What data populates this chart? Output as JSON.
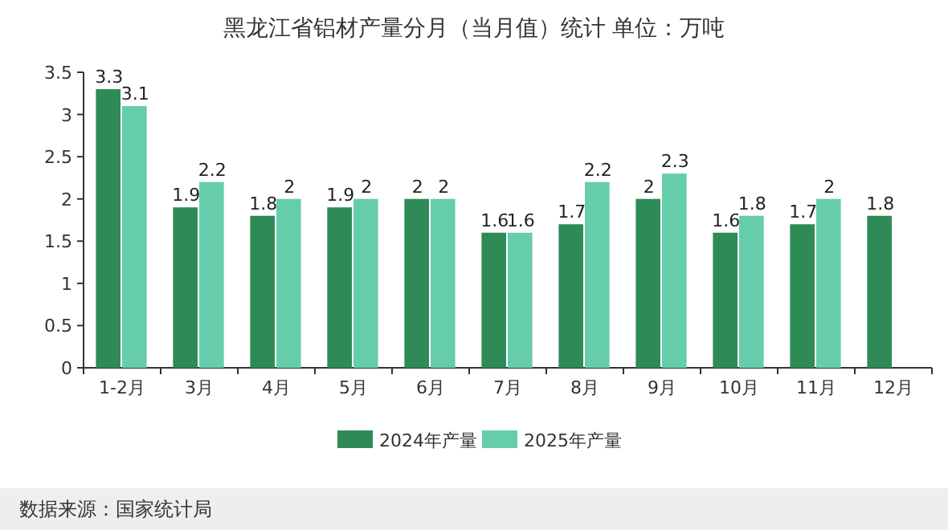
{
  "chart_data": {
    "type": "bar",
    "title": "黑龙江省铝材产量分月（当月值）统计  单位：万吨",
    "categories": [
      "1-2月",
      "3月",
      "4月",
      "5月",
      "6月",
      "7月",
      "8月",
      "9月",
      "10月",
      "11月",
      "12月"
    ],
    "series": [
      {
        "name": "2024年产量",
        "color": "#2e8b57",
        "values": [
          3.3,
          1.9,
          1.8,
          1.9,
          2,
          1.6,
          1.7,
          2,
          1.6,
          1.7,
          1.8
        ]
      },
      {
        "name": "2025年产量",
        "color": "#66cdaa",
        "values": [
          3.1,
          2.2,
          2,
          2,
          2,
          1.6,
          2.2,
          2.3,
          1.8,
          2,
          null
        ]
      }
    ],
    "ylim": [
      0,
      3.5
    ],
    "yticks": [
      0,
      0.5,
      1,
      1.5,
      2,
      2.5,
      3,
      3.5
    ],
    "data_labels": true,
    "legend": "bottom",
    "annotations": [
      "数据来源：国家统计局"
    ]
  }
}
